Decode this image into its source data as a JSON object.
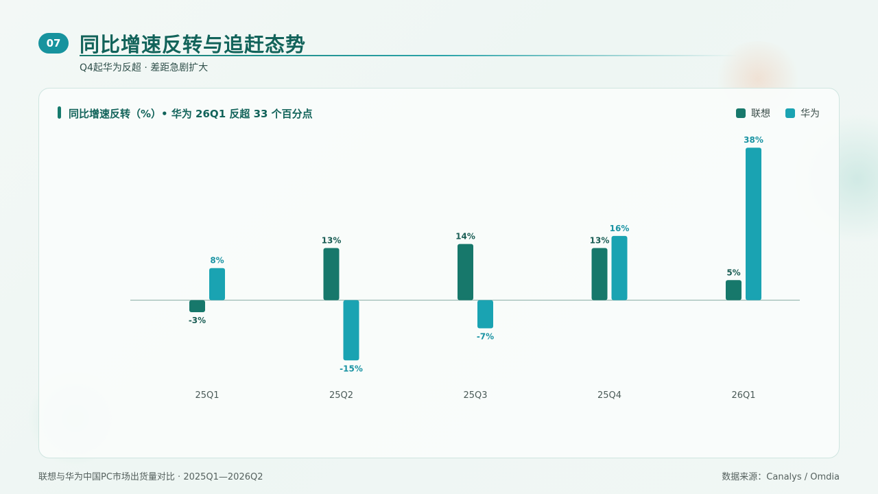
{
  "header": {
    "badge": "07",
    "title": "同比增速反转与追赶态势",
    "subtitle": "Q4起华为反超 · 差距急剧扩大"
  },
  "footer": {
    "left": "联想与华为中国PC市场出货量对比 · 2025Q1—2026Q2",
    "right": "数据来源：Canalys / Omdia"
  },
  "colors": {
    "lenovo": "#17786b",
    "huawei": "#1aa3b2"
  },
  "chart_data": {
    "type": "bar",
    "title": "同比增速反转（%）• 华为 26Q1 反超 33 个百分点",
    "categories": [
      "25Q1",
      "25Q2",
      "25Q3",
      "25Q4",
      "26Q1"
    ],
    "series": [
      {
        "name": "联想",
        "values": [
          -3,
          13,
          14,
          13,
          5
        ],
        "labels": [
          "-3%",
          "13%",
          "14%",
          "13%",
          "5%"
        ]
      },
      {
        "name": "华为",
        "values": [
          8,
          -15,
          -7,
          16,
          38
        ],
        "labels": [
          "8%",
          "-15%",
          "-7%",
          "16%",
          "38%"
        ]
      }
    ],
    "ylim": [
      -20,
      40
    ],
    "grid": false,
    "legend": "top-right"
  }
}
